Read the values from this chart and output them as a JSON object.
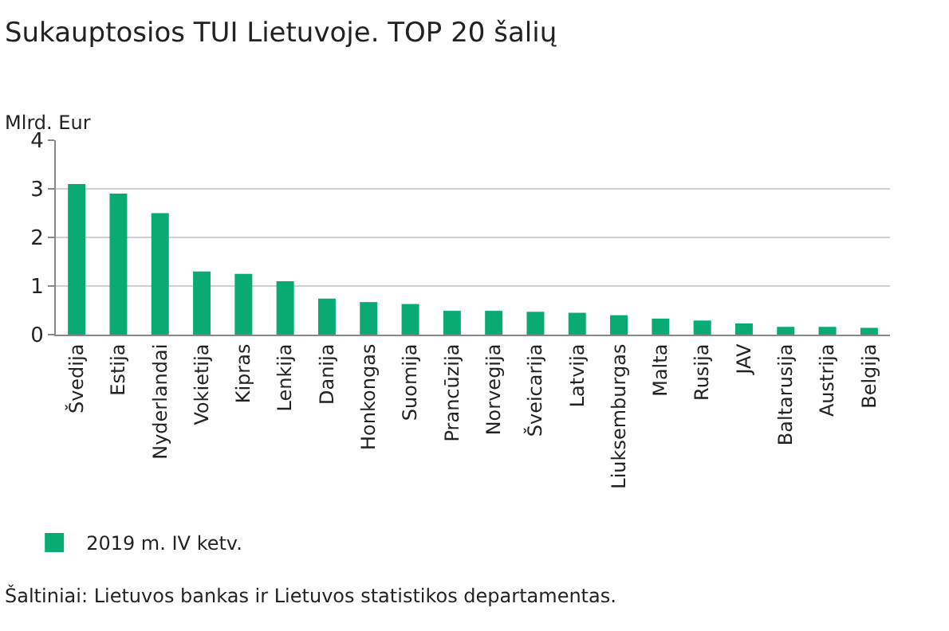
{
  "chart_data": {
    "type": "bar",
    "title": "Sukauptosios TUI Lietuvoje. TOP 20 šalių",
    "ylabel": "Mlrd. Eur",
    "categories": [
      "Švedija",
      "Estija",
      "Nyderlandai",
      "Vokietija",
      "Kipras",
      "Lenkija",
      "Danija",
      "Honkongas",
      "Suomija",
      "Prancūzija",
      "Norvegija",
      "Šveicarija",
      "Latvija",
      "Liuksemburgas",
      "Malta",
      "Rusija",
      "JAV",
      "Baltarusija",
      "Austrija",
      "Belgija"
    ],
    "series": [
      {
        "name": "2019 m. IV ketv.",
        "color": "#0aab73",
        "values": [
          3.1,
          2.9,
          2.5,
          1.3,
          1.25,
          1.1,
          0.74,
          0.67,
          0.63,
          0.49,
          0.49,
          0.47,
          0.45,
          0.4,
          0.33,
          0.29,
          0.23,
          0.16,
          0.16,
          0.14
        ]
      }
    ],
    "ylim": [
      0,
      4
    ],
    "yticks": [
      0,
      1,
      2,
      3,
      4
    ],
    "grid": "y",
    "legend": "bottom left",
    "annotations": [
      "Šaltiniai: Lietuvos bankas ir Lietuvos statistikos departamentas."
    ]
  }
}
